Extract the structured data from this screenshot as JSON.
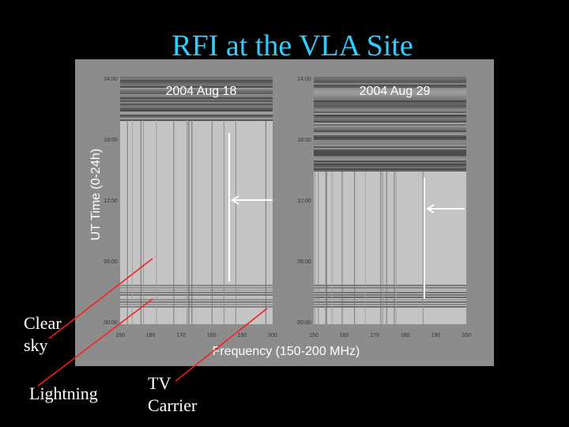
{
  "title": "RFI at the VLA Site",
  "figure": {
    "y_label": "UT Time (0-24h)",
    "x_label": "Frequency (150-200 MHz)",
    "panels": [
      {
        "date": "2004 Aug 18",
        "yticks": [
          "24:00",
          "18:00",
          "12:00",
          "06:00",
          "00:00"
        ],
        "xticks": [
          "150",
          "160",
          "170",
          "180",
          "190",
          "200"
        ]
      },
      {
        "date": "2004 Aug 29",
        "yticks": [
          "24:00",
          "18:00",
          "12:00",
          "06:00",
          "00:00"
        ],
        "xticks": [
          "150",
          "160",
          "170",
          "180",
          "190",
          "200"
        ]
      }
    ]
  },
  "annotations": [
    {
      "lines": [
        "Clear",
        "sky"
      ]
    },
    {
      "lines": [
        "Lightning"
      ]
    },
    {
      "lines": [
        "TV",
        "Carrier"
      ]
    }
  ]
}
